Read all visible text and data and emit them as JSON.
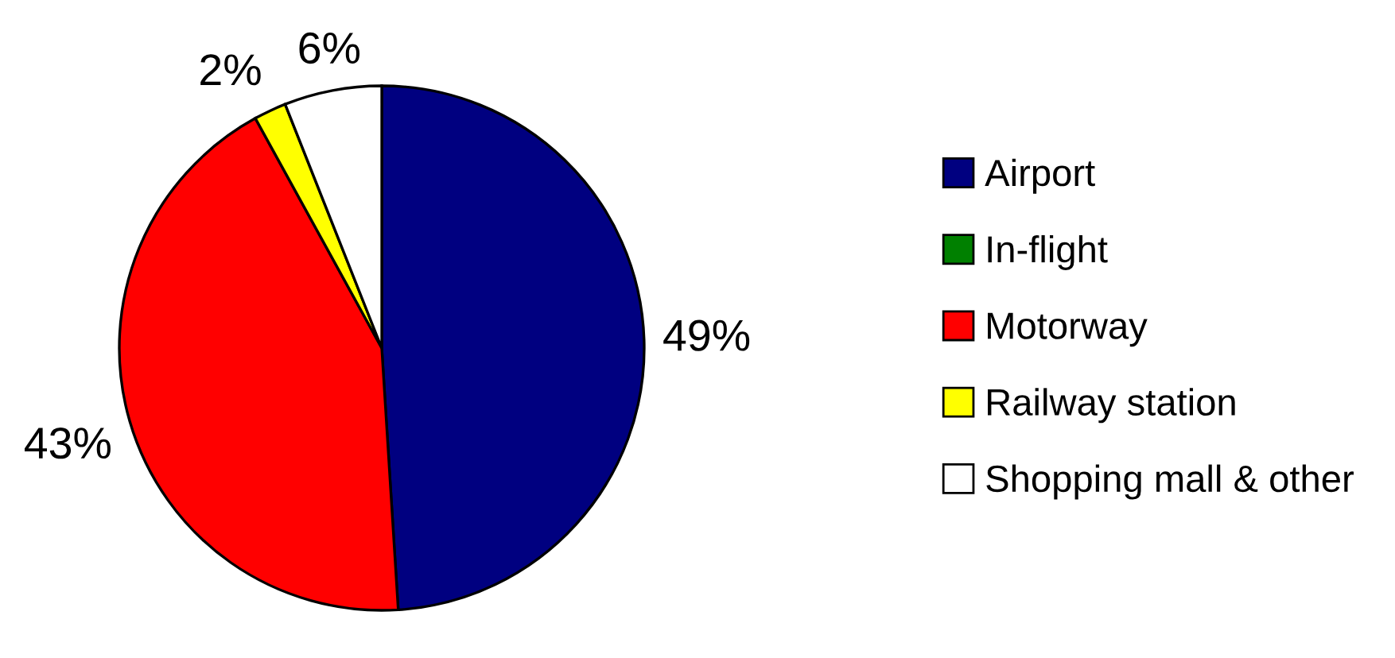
{
  "chart_data": {
    "type": "pie",
    "categories": [
      "Airport",
      "In-flight",
      "Motorway",
      "Railway station",
      "Shopping mall & other"
    ],
    "values": [
      49,
      0,
      43,
      2,
      6
    ],
    "colors": [
      "#000080",
      "#008000",
      "#ff0000",
      "#ffff00",
      "#ffffff"
    ],
    "value_labels": [
      "49%",
      null,
      "43%",
      "2%",
      "6%"
    ],
    "legend": "right"
  }
}
